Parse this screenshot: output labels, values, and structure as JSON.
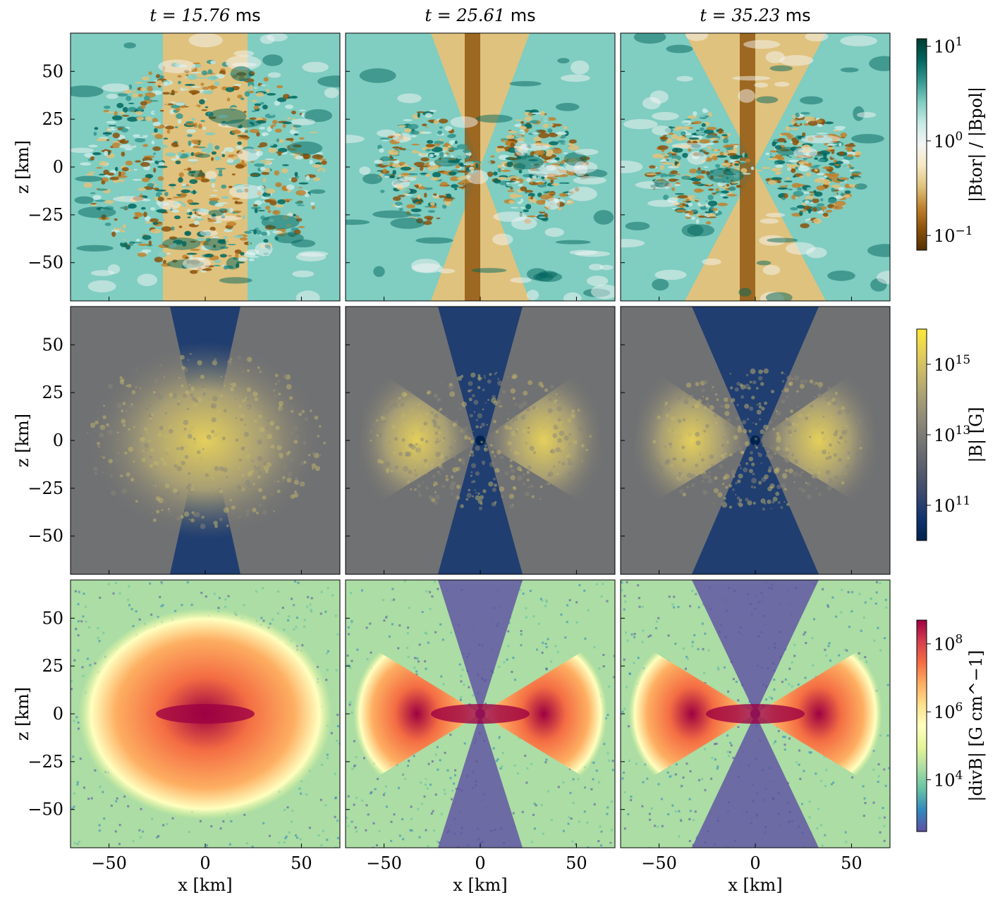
{
  "chart_data": {
    "type": "heatmap",
    "layout": {
      "rows": 3,
      "cols": 3
    },
    "columns": [
      {
        "t_label": "t = 15.76",
        "t_unit": "ms",
        "t_ms": 15.76
      },
      {
        "t_label": "t = 25.61",
        "t_unit": "ms",
        "t_ms": 25.61
      },
      {
        "t_label": "t = 35.23",
        "t_unit": "ms",
        "t_ms": 35.23
      }
    ],
    "x_axis": {
      "label": "x [km]",
      "ticks": [
        -50,
        0,
        50
      ],
      "tick_labels": [
        "−50",
        "0",
        "50"
      ],
      "lim": [
        -70,
        70
      ]
    },
    "y_axis": {
      "label": "z [km]",
      "ticks": [
        50,
        25,
        0,
        -25,
        -50
      ],
      "tick_labels": [
        "50",
        "25",
        "0",
        "−25",
        "−50"
      ],
      "lim": [
        -70,
        70
      ]
    },
    "rows": [
      {
        "quantity": "|B_tor| / |B_pol|",
        "colorbar_label": "|Btor| / |Bpol|",
        "scale": "log",
        "range": [
          0.07,
          12
        ],
        "colorbar_ticks": [
          {
            "value": 10,
            "label": "10^1"
          },
          {
            "value": 1,
            "label": "10^0"
          },
          {
            "value": 0.1,
            "label": "10^−1"
          }
        ],
        "colormap": [
          "#543005",
          "#8c510a",
          "#bf812d",
          "#dfc27d",
          "#f6e8c3",
          "#f5f5f5",
          "#c7eae5",
          "#80cdc1",
          "#35978f",
          "#01665e",
          "#003c30"
        ]
      },
      {
        "quantity": "|B|",
        "colorbar_label": "|B| [G]",
        "scale": "log",
        "range": [
          10000000000.0,
          1e+16
        ],
        "colorbar_ticks": [
          {
            "value": 1000000000000000.0,
            "label": "10^15"
          },
          {
            "value": 10000000000000.0,
            "label": "10^13"
          },
          {
            "value": 100000000000.0,
            "label": "10^11"
          }
        ],
        "colormap": [
          "#00224e",
          "#123570",
          "#3b496c",
          "#575d6d",
          "#707173",
          "#8a8678",
          "#a69d75",
          "#c4b56c",
          "#e4cf5b",
          "#fee838"
        ]
      },
      {
        "quantity": "|divB|",
        "colorbar_label": "|divB| [G cm^−1]",
        "scale": "log",
        "range": [
          300,
          500000000.0
        ],
        "colorbar_ticks": [
          {
            "value": 100000000.0,
            "label": "10^8"
          },
          {
            "value": 1000000.0,
            "label": "10^6"
          },
          {
            "value": 10000.0,
            "label": "10^4"
          }
        ],
        "colormap": [
          "#5e4fa2",
          "#3288bd",
          "#66c2a5",
          "#abdda4",
          "#e6f598",
          "#ffffbf",
          "#fee08b",
          "#fdae61",
          "#f46d43",
          "#d53e4f",
          "#9e0142"
        ]
      }
    ]
  }
}
